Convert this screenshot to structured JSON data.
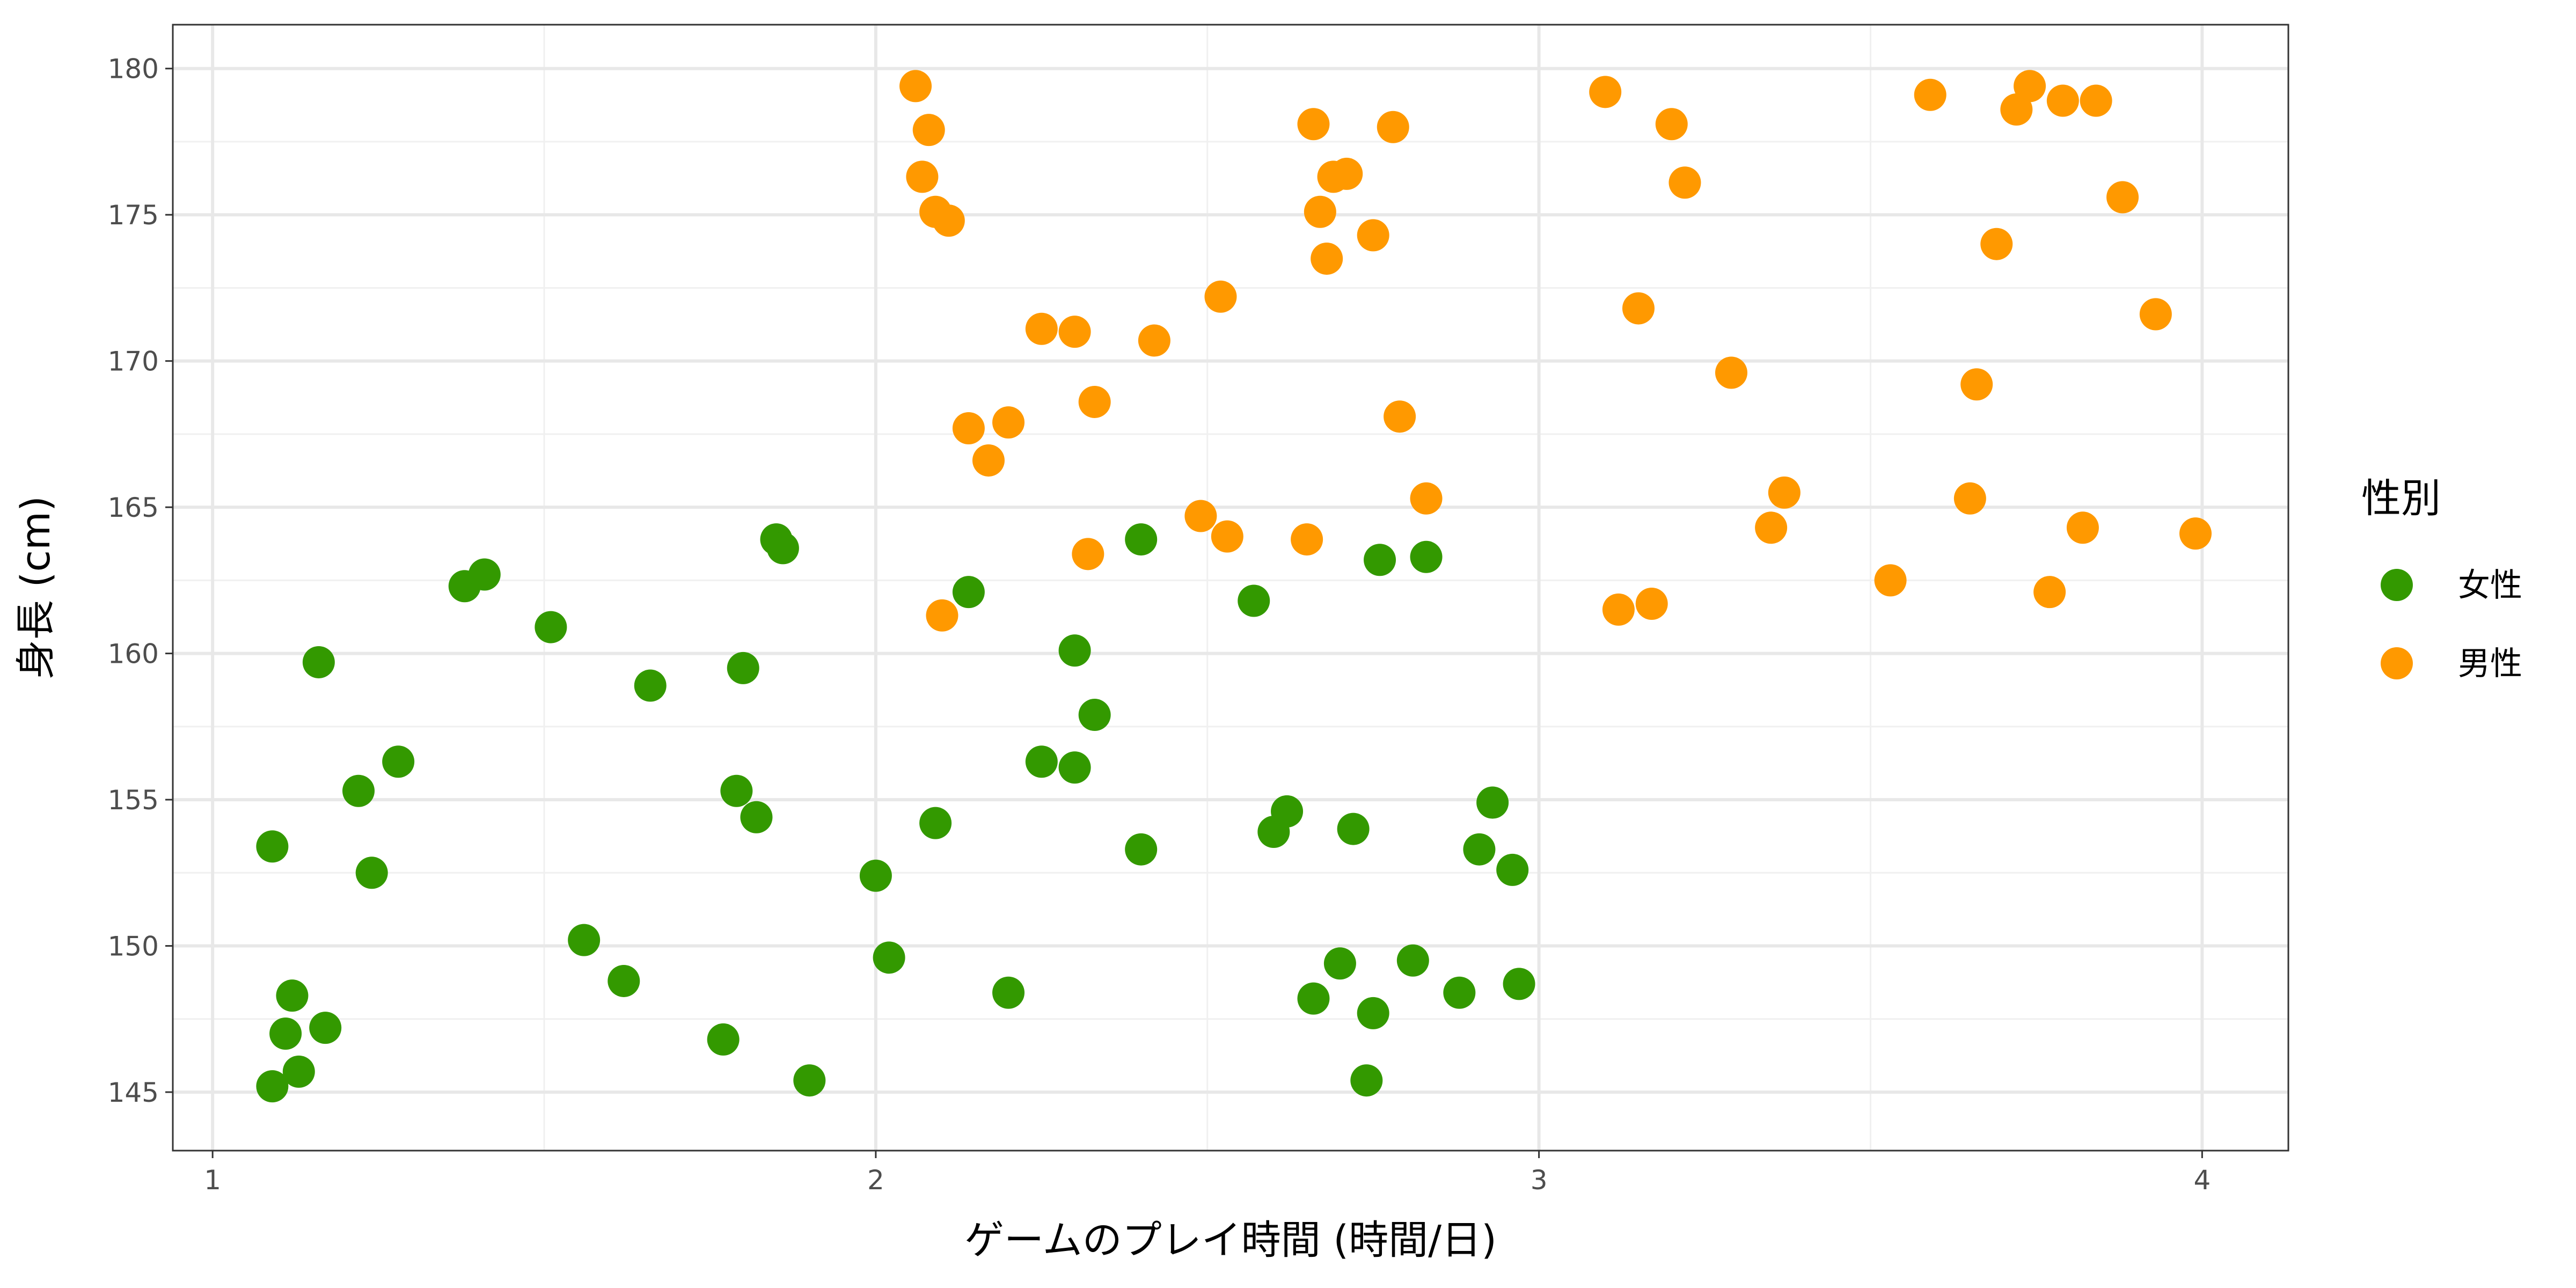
{
  "chart_data": {
    "type": "scatter",
    "title": "",
    "xlabel": "ゲームのプレイ時間 (時間/日)",
    "ylabel": "身長 (cm)",
    "xlim": [
      0.94,
      4.13
    ],
    "ylim": [
      143.0,
      181.5
    ],
    "xticks": [
      1,
      2,
      3,
      4
    ],
    "xtick_labels": [
      "1",
      "2",
      "3",
      "4"
    ],
    "yticks": [
      145,
      150,
      155,
      160,
      165,
      170,
      175,
      180
    ],
    "ytick_labels": [
      "145",
      "150",
      "155",
      "160",
      "165",
      "170",
      "175",
      "180"
    ],
    "grid": true,
    "legend": {
      "title": "性別",
      "position": "right"
    },
    "series": [
      {
        "name": "女性",
        "color": "#339900",
        "points": [
          [
            1.09,
            145.2
          ],
          [
            1.13,
            145.7
          ],
          [
            1.11,
            147.0
          ],
          [
            1.17,
            147.2
          ],
          [
            1.12,
            148.3
          ],
          [
            1.09,
            153.4
          ],
          [
            1.24,
            152.5
          ],
          [
            1.22,
            155.3
          ],
          [
            1.28,
            156.3
          ],
          [
            1.16,
            159.7
          ],
          [
            1.38,
            162.3
          ],
          [
            1.41,
            162.7
          ],
          [
            1.51,
            160.9
          ],
          [
            1.56,
            150.2
          ],
          [
            1.62,
            148.8
          ],
          [
            1.66,
            158.9
          ],
          [
            1.77,
            146.8
          ],
          [
            1.79,
            155.3
          ],
          [
            1.8,
            159.5
          ],
          [
            1.82,
            154.4
          ],
          [
            1.85,
            163.9
          ],
          [
            1.86,
            163.6
          ],
          [
            1.9,
            145.4
          ],
          [
            2.0,
            152.4
          ],
          [
            2.02,
            149.6
          ],
          [
            2.09,
            154.2
          ],
          [
            2.14,
            162.1
          ],
          [
            2.2,
            148.4
          ],
          [
            2.25,
            156.3
          ],
          [
            2.3,
            160.1
          ],
          [
            2.3,
            156.1
          ],
          [
            2.33,
            157.9
          ],
          [
            2.4,
            153.3
          ],
          [
            2.4,
            163.9
          ],
          [
            2.57,
            161.8
          ],
          [
            2.6,
            153.9
          ],
          [
            2.62,
            154.6
          ],
          [
            2.66,
            148.2
          ],
          [
            2.7,
            149.4
          ],
          [
            2.72,
            154.0
          ],
          [
            2.74,
            145.4
          ],
          [
            2.75,
            147.7
          ],
          [
            2.76,
            163.2
          ],
          [
            2.81,
            149.5
          ],
          [
            2.83,
            163.3
          ],
          [
            2.88,
            148.4
          ],
          [
            2.91,
            153.3
          ],
          [
            2.93,
            154.9
          ],
          [
            2.96,
            152.6
          ],
          [
            2.97,
            148.7
          ]
        ]
      },
      {
        "name": "男性",
        "color": "#ff9900",
        "points": [
          [
            2.06,
            179.4
          ],
          [
            2.08,
            177.9
          ],
          [
            2.07,
            176.3
          ],
          [
            2.09,
            175.1
          ],
          [
            2.11,
            174.8
          ],
          [
            2.1,
            161.3
          ],
          [
            2.14,
            167.7
          ],
          [
            2.17,
            166.6
          ],
          [
            2.2,
            167.9
          ],
          [
            2.25,
            171.1
          ],
          [
            2.3,
            171.0
          ],
          [
            2.33,
            168.6
          ],
          [
            2.32,
            163.4
          ],
          [
            2.42,
            170.7
          ],
          [
            2.49,
            164.7
          ],
          [
            2.52,
            172.2
          ],
          [
            2.53,
            164.0
          ],
          [
            2.65,
            163.9
          ],
          [
            2.66,
            178.1
          ],
          [
            2.67,
            175.1
          ],
          [
            2.68,
            173.5
          ],
          [
            2.69,
            176.3
          ],
          [
            2.71,
            176.4
          ],
          [
            2.75,
            174.3
          ],
          [
            2.78,
            178.0
          ],
          [
            2.79,
            168.1
          ],
          [
            2.83,
            165.3
          ],
          [
            3.1,
            179.2
          ],
          [
            3.12,
            161.5
          ],
          [
            3.15,
            171.8
          ],
          [
            3.17,
            161.7
          ],
          [
            3.2,
            178.1
          ],
          [
            3.22,
            176.1
          ],
          [
            3.29,
            169.6
          ],
          [
            3.35,
            164.3
          ],
          [
            3.37,
            165.5
          ],
          [
            3.53,
            162.5
          ],
          [
            3.59,
            179.1
          ],
          [
            3.65,
            165.3
          ],
          [
            3.66,
            169.2
          ],
          [
            3.69,
            174.0
          ],
          [
            3.72,
            178.6
          ],
          [
            3.74,
            179.4
          ],
          [
            3.77,
            162.1
          ],
          [
            3.79,
            178.9
          ],
          [
            3.82,
            164.3
          ],
          [
            3.84,
            178.9
          ],
          [
            3.88,
            175.6
          ],
          [
            3.93,
            171.6
          ],
          [
            3.99,
            164.1
          ]
        ]
      }
    ]
  }
}
